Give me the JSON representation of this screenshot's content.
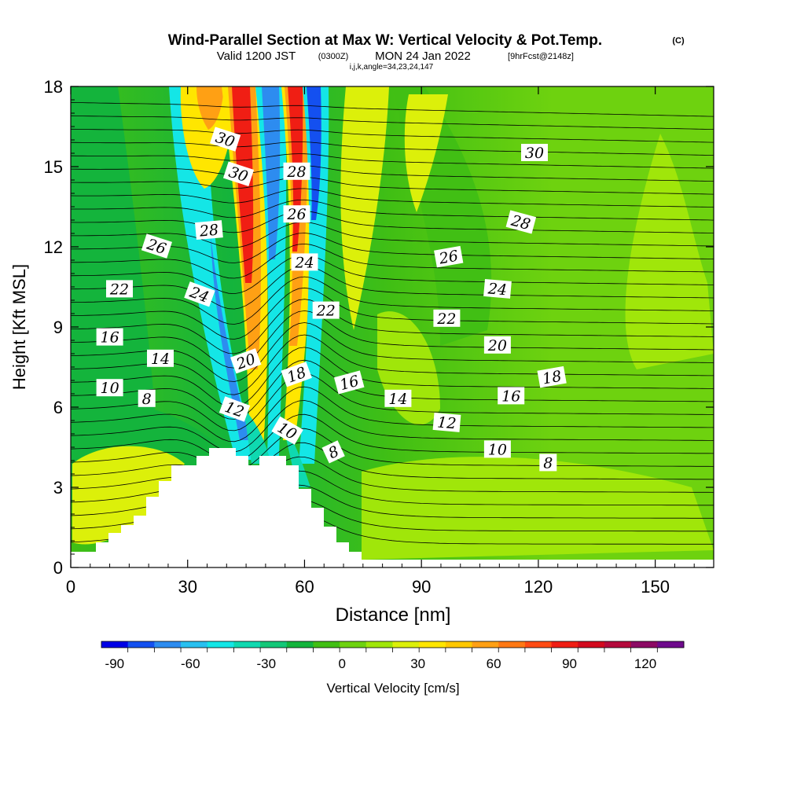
{
  "chart_data": {
    "type": "contour",
    "title": "Wind-Parallel Section at Max W: Vertical Velocity & Pot.Temp.",
    "title_mark": "(C)",
    "subtitle_valid": "Valid 1200 JST",
    "subtitle_utc": "(0300Z)",
    "subtitle_date": "MON 24 Jan 2022",
    "subtitle_fcst": "[9hrFcst@2148z]",
    "subtitle_indices": "i,j,k,angle=34,23,24,147",
    "xlabel": "Distance [nm]",
    "ylabel": "Height [Kft MSL]",
    "xlim": [
      0,
      165
    ],
    "ylim": [
      0,
      18
    ],
    "xticks": [
      0,
      30,
      60,
      90,
      120,
      150
    ],
    "yticks": [
      0,
      3,
      6,
      9,
      12,
      15,
      18
    ],
    "colorbar": {
      "label": "Vertical Velocity [cm/s]",
      "min": -90,
      "max": 130,
      "step": 10,
      "tick_values": [
        -90,
        -60,
        -30,
        0,
        30,
        60,
        90,
        120
      ],
      "colors": [
        "#0000e6",
        "#1450f0",
        "#2d8cf0",
        "#28c0f0",
        "#14e6e6",
        "#0fd9b0",
        "#14c878",
        "#14b43c",
        "#41bf14",
        "#6ed20f",
        "#a0e60a",
        "#dcf00a",
        "#ffe600",
        "#ffc800",
        "#ffa014",
        "#ff7814",
        "#ff4b14",
        "#f01e14",
        "#d20a1e",
        "#b40a3c",
        "#8c0a64",
        "#6e0a8c"
      ]
    },
    "theta_labels": [
      {
        "text": "30",
        "x": 39.6,
        "y": 16.0,
        "rot": 18
      },
      {
        "text": "30",
        "x": 43.0,
        "y": 14.7,
        "rot": 18
      },
      {
        "text": "28",
        "x": 58.0,
        "y": 14.8,
        "rot": 0
      },
      {
        "text": "30",
        "x": 119.0,
        "y": 15.5,
        "rot": 0
      },
      {
        "text": "28",
        "x": 35.5,
        "y": 12.6,
        "rot": -5
      },
      {
        "text": "26",
        "x": 22.0,
        "y": 12.0,
        "rot": 18
      },
      {
        "text": "26",
        "x": 58.0,
        "y": 13.2,
        "rot": 0
      },
      {
        "text": "28",
        "x": 115.5,
        "y": 12.9,
        "rot": 15
      },
      {
        "text": "26",
        "x": 97.0,
        "y": 11.6,
        "rot": -10
      },
      {
        "text": "24",
        "x": 60.0,
        "y": 11.4,
        "rot": 0
      },
      {
        "text": "22",
        "x": 12.5,
        "y": 10.4,
        "rot": 0
      },
      {
        "text": "24",
        "x": 33.0,
        "y": 10.2,
        "rot": 20
      },
      {
        "text": "24",
        "x": 109.5,
        "y": 10.4,
        "rot": 5
      },
      {
        "text": "22",
        "x": 65.5,
        "y": 9.6,
        "rot": 0
      },
      {
        "text": "22",
        "x": 96.5,
        "y": 9.3,
        "rot": 0
      },
      {
        "text": "16",
        "x": 10.0,
        "y": 8.6,
        "rot": 0
      },
      {
        "text": "20",
        "x": 109.5,
        "y": 8.3,
        "rot": 0
      },
      {
        "text": "14",
        "x": 23.0,
        "y": 7.8,
        "rot": 0
      },
      {
        "text": "20",
        "x": 45.0,
        "y": 7.7,
        "rot": -20
      },
      {
        "text": "18",
        "x": 58.0,
        "y": 7.2,
        "rot": -20
      },
      {
        "text": "18",
        "x": 123.5,
        "y": 7.1,
        "rot": -10
      },
      {
        "text": "16",
        "x": 71.5,
        "y": 6.9,
        "rot": -15
      },
      {
        "text": "10",
        "x": 10.0,
        "y": 6.7,
        "rot": 0
      },
      {
        "text": "8",
        "x": 19.5,
        "y": 6.3,
        "rot": 0
      },
      {
        "text": "14",
        "x": 84.0,
        "y": 6.3,
        "rot": 0
      },
      {
        "text": "16",
        "x": 113.0,
        "y": 6.4,
        "rot": 0
      },
      {
        "text": "12",
        "x": 42.0,
        "y": 5.9,
        "rot": 20
      },
      {
        "text": "12",
        "x": 96.5,
        "y": 5.4,
        "rot": 5
      },
      {
        "text": "10",
        "x": 55.5,
        "y": 5.1,
        "rot": 30
      },
      {
        "text": "8",
        "x": 67.5,
        "y": 4.3,
        "rot": -25
      },
      {
        "text": "10",
        "x": 109.5,
        "y": 4.4,
        "rot": 0
      },
      {
        "text": "8",
        "x": 122.5,
        "y": 3.9,
        "rot": 0
      }
    ]
  }
}
